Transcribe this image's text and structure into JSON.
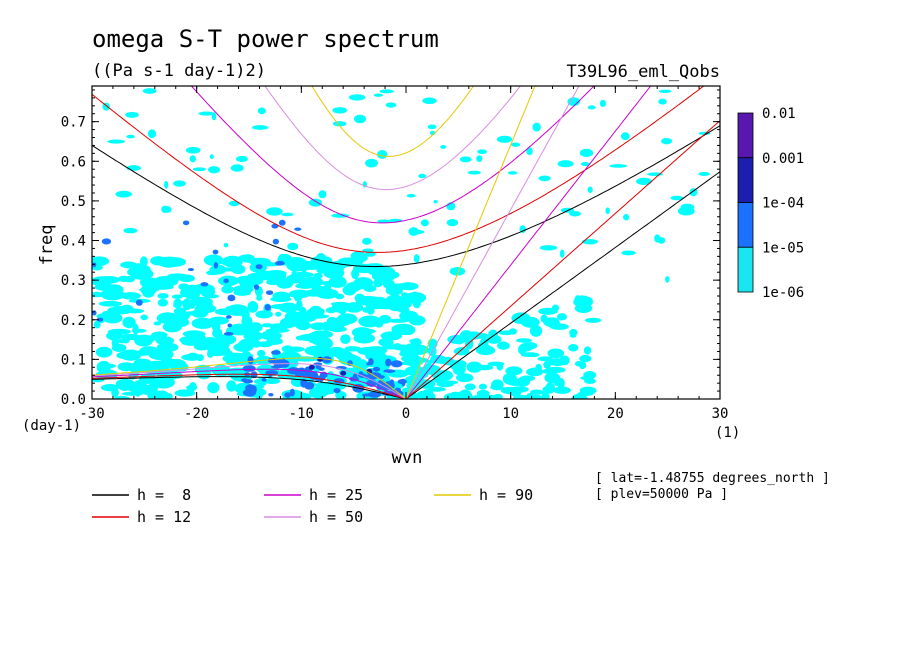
{
  "chart_data": {
    "type": "contour",
    "title": "omega S-T power spectrum",
    "subtitle": "((Pa s-1 day-1)2)",
    "run_label": "T39L96_eml_Qobs",
    "xlabel": "wvn",
    "ylabel": "freq",
    "x_unit_label": "(1)",
    "y_unit_label": "(day-1)",
    "xlim": [
      -30,
      30
    ],
    "ylim": [
      0,
      0.79
    ],
    "xticks": [
      "-30",
      "-20",
      "-10",
      "0",
      "10",
      "20",
      "30"
    ],
    "yticks": [
      "0.0",
      "0.1",
      "0.2",
      "0.3",
      "0.4",
      "0.5",
      "0.6",
      "0.7"
    ],
    "xtick_values": [
      -30,
      -20,
      -10,
      0,
      10,
      20,
      30
    ],
    "ytick_values": [
      0,
      0.1,
      0.2,
      0.3,
      0.4,
      0.5,
      0.6,
      0.7
    ],
    "grid": false,
    "colorbar": {
      "levels": [
        "0.01",
        "0.001",
        "1e-04",
        "1e-05",
        "1e-06"
      ],
      "colors": [
        "#5a17b0",
        "#1c1eb0",
        "#1a72ff",
        "#19e6f0"
      ]
    },
    "contour_fill_colors": {
      "1e-06": "#00ffff",
      "1e-05": "#1a72ff",
      "1e-04": "#1c1eb0"
    },
    "dispersion_curves": [
      {
        "label": "h =  8",
        "h": 8,
        "color": "#000000"
      },
      {
        "label": "h = 12",
        "h": 12,
        "color": "#e00000"
      },
      {
        "label": "h = 25",
        "h": 25,
        "color": "#cc00cc"
      },
      {
        "label": "h = 50",
        "h": 50,
        "color": "#d88ee0"
      },
      {
        "label": "h = 90",
        "h": 90,
        "color": "#e6c800"
      }
    ],
    "annotations": [
      "[ lat=-1.48755 degrees_north ]",
      "[ plev=50000 Pa ]"
    ]
  }
}
